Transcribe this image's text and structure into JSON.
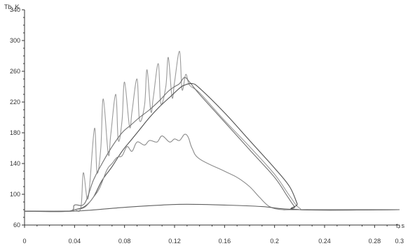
{
  "chart_data": {
    "type": "line",
    "title": "",
    "ylabel": "Tb, K",
    "xlabel": "t, s",
    "xlim": [
      0,
      0.3
    ],
    "ylim": [
      60,
      340
    ],
    "x_ticks": [
      "0",
      "0.04",
      "0.08",
      "0.12",
      "0.16",
      "0.2",
      "0.24",
      "0.28",
      "0.3"
    ],
    "x_tick_values": [
      0,
      0.04,
      0.08,
      0.12,
      0.16,
      0.2,
      0.24,
      0.28,
      0.3
    ],
    "y_ticks": [
      "60",
      "100",
      "140",
      "180",
      "220",
      "260",
      "300",
      "340"
    ],
    "y_tick_values": [
      60,
      100,
      140,
      180,
      220,
      260,
      300,
      340
    ],
    "grid": false,
    "legend": "none",
    "series": [
      {
        "color": "#9a9a9a",
        "x": [
          0,
          0.035,
          0.04,
          0.045,
          0.047,
          0.05,
          0.052,
          0.056,
          0.058,
          0.061,
          0.063,
          0.067,
          0.069,
          0.073,
          0.075,
          0.078,
          0.08,
          0.084,
          0.086,
          0.09,
          0.092,
          0.096,
          0.098,
          0.101,
          0.103,
          0.107,
          0.109,
          0.113,
          0.115,
          0.118,
          0.12,
          0.124,
          0.126,
          0.129,
          0.132,
          0.14,
          0.16,
          0.18,
          0.2,
          0.212,
          0.22,
          0.23,
          0.3
        ],
        "y": [
          78,
          78,
          80,
          82,
          128,
          95,
          110,
          186,
          128,
          160,
          224,
          152,
          178,
          230,
          170,
          196,
          246,
          188,
          208,
          250,
          196,
          216,
          262,
          208,
          226,
          270,
          218,
          240,
          278,
          226,
          246,
          286,
          236,
          256,
          242,
          232,
          196,
          162,
          126,
          98,
          82,
          80,
          80
        ]
      },
      {
        "color": "#707070",
        "x": [
          0,
          0.035,
          0.04,
          0.048,
          0.055,
          0.062,
          0.07,
          0.078,
          0.085,
          0.092,
          0.1,
          0.108,
          0.115,
          0.12,
          0.124,
          0.128,
          0.132,
          0.14,
          0.16,
          0.18,
          0.2,
          0.21,
          0.216,
          0.22,
          0.3
        ],
        "y": [
          78,
          78,
          86,
          88,
          118,
          140,
          162,
          180,
          190,
          200,
          210,
          222,
          234,
          240,
          244,
          252,
          246,
          230,
          194,
          158,
          122,
          98,
          84,
          80,
          80
        ]
      },
      {
        "color": "#505050",
        "x": [
          0,
          0.035,
          0.04,
          0.048,
          0.055,
          0.062,
          0.07,
          0.078,
          0.085,
          0.092,
          0.1,
          0.108,
          0.116,
          0.124,
          0.128,
          0.134,
          0.14,
          0.16,
          0.18,
          0.2,
          0.212,
          0.218,
          0.22,
          0.3
        ],
        "y": [
          78,
          78,
          80,
          84,
          96,
          118,
          136,
          156,
          170,
          184,
          200,
          214,
          226,
          238,
          242,
          244,
          238,
          206,
          170,
          134,
          110,
          88,
          80,
          80
        ]
      },
      {
        "color": "#8a8a8a",
        "x": [
          0,
          0.035,
          0.04,
          0.048,
          0.055,
          0.06,
          0.066,
          0.07,
          0.074,
          0.078,
          0.082,
          0.086,
          0.09,
          0.096,
          0.1,
          0.106,
          0.11,
          0.116,
          0.12,
          0.124,
          0.128,
          0.131,
          0.134,
          0.14,
          0.16,
          0.17,
          0.18,
          0.188,
          0.196,
          0.206,
          0.22,
          0.3
        ],
        "y": [
          78,
          78,
          80,
          83,
          96,
          108,
          132,
          140,
          148,
          150,
          162,
          156,
          168,
          164,
          170,
          168,
          176,
          168,
          172,
          170,
          178,
          174,
          160,
          146,
          130,
          122,
          110,
          96,
          84,
          80,
          80,
          80
        ]
      },
      {
        "color": "#606060",
        "x": [
          0,
          0.035,
          0.05,
          0.08,
          0.11,
          0.13,
          0.16,
          0.19,
          0.22,
          0.3
        ],
        "y": [
          78,
          78,
          79,
          83,
          86,
          87,
          86,
          84,
          80,
          80
        ]
      }
    ]
  }
}
